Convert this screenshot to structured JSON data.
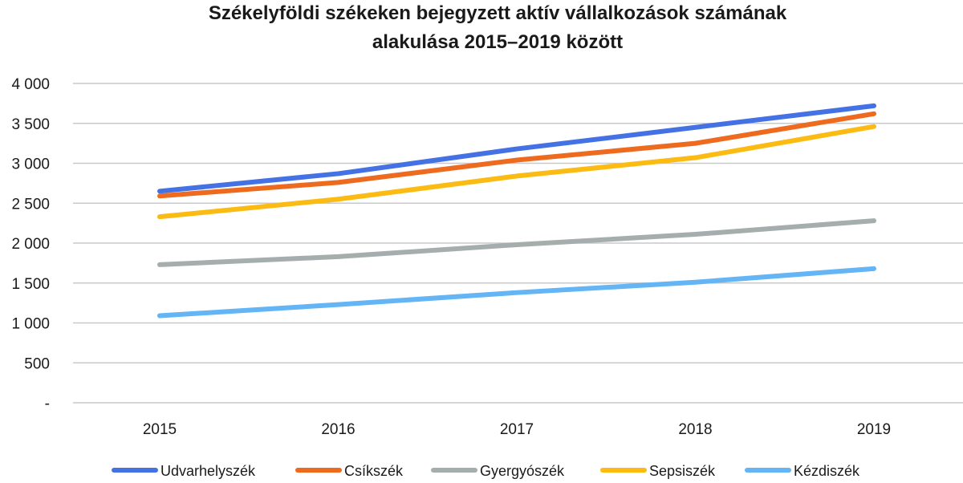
{
  "chart_data": {
    "type": "line",
    "title_lines": [
      "Székelyföldi székeken bejegyzett aktív vállalkozások számának",
      "alakulása 2015–2019 között"
    ],
    "categories": [
      "2015",
      "2016",
      "2017",
      "2018",
      "2019"
    ],
    "ylim": [
      0,
      4000
    ],
    "y_ticks": [
      {
        "value": 0,
        "label": "-"
      },
      {
        "value": 500,
        "label": "500"
      },
      {
        "value": 1000,
        "label": "1 000"
      },
      {
        "value": 1500,
        "label": "1 500"
      },
      {
        "value": 2000,
        "label": "2 000"
      },
      {
        "value": 2500,
        "label": "2 500"
      },
      {
        "value": 3000,
        "label": "3 000"
      },
      {
        "value": 3500,
        "label": "3 500"
      },
      {
        "value": 4000,
        "label": "4 000"
      }
    ],
    "grid": true,
    "legend_position": "bottom",
    "series": [
      {
        "name": "Udvarhelyszék",
        "color": "#4472E4",
        "values": [
          2650,
          2870,
          3180,
          3450,
          3720
        ]
      },
      {
        "name": "Csíkszék",
        "color": "#ED6A1F",
        "values": [
          2590,
          2760,
          3040,
          3250,
          3620
        ]
      },
      {
        "name": "Gyergyószék",
        "color": "#A5ADAD",
        "values": [
          1730,
          1830,
          1980,
          2110,
          2280
        ]
      },
      {
        "name": "Sepsiszék",
        "color": "#FBBB12",
        "values": [
          2330,
          2550,
          2840,
          3070,
          3460
        ]
      },
      {
        "name": "Kézdiszék",
        "color": "#63B5F6",
        "values": [
          1090,
          1230,
          1380,
          1510,
          1680
        ]
      }
    ]
  }
}
